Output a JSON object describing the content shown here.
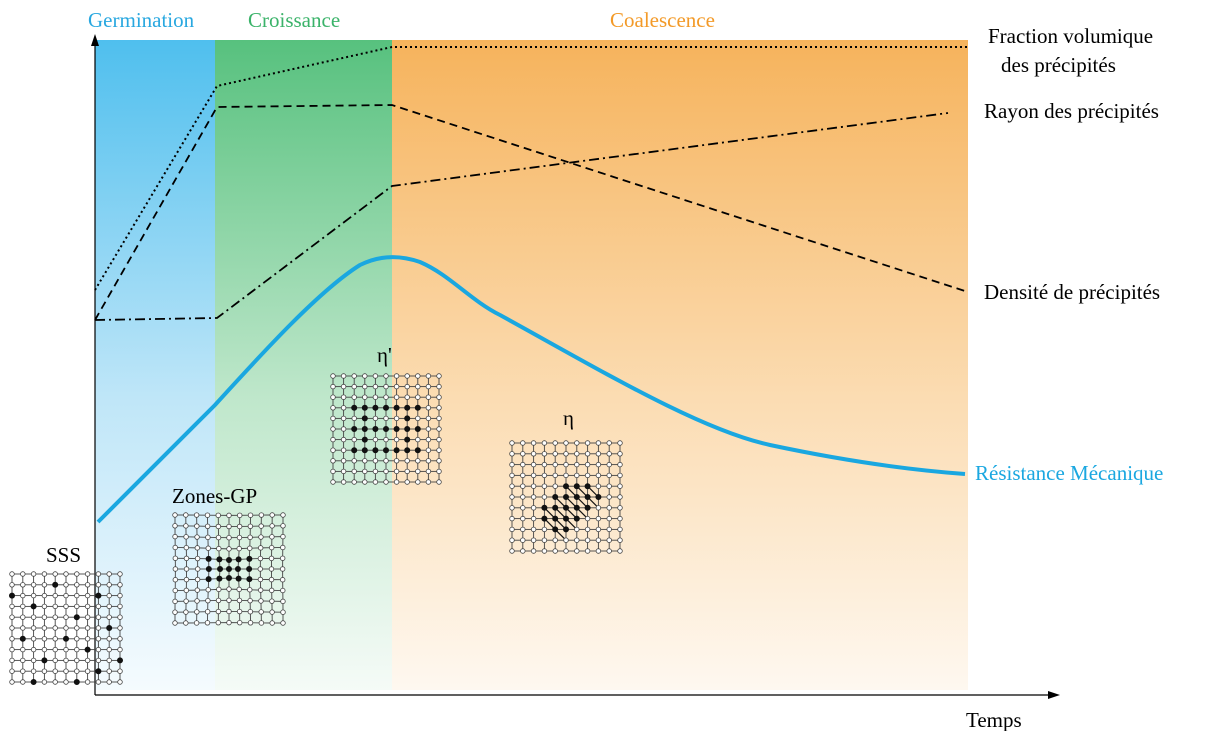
{
  "phases": {
    "germination": {
      "label": "Germination",
      "color": "#29a8e0"
    },
    "croissance": {
      "label": "Croissance",
      "color": "#3bb36a"
    },
    "coalescence": {
      "label": "Coalescence",
      "color": "#f39a28"
    }
  },
  "curves": {
    "fraction_volumique": {
      "label_line1": "Fraction volumique",
      "label_line2": "des précipités"
    },
    "rayon": {
      "label": "Rayon des précipités"
    },
    "densite": {
      "label": "Densité de précipités"
    },
    "resistance": {
      "label": "Résistance Mécanique",
      "color": "#1aa7e0"
    }
  },
  "structures": {
    "sss": {
      "label": "SSS"
    },
    "zones_gp": {
      "label": "Zones-GP"
    },
    "eta_prime": {
      "label": "η'"
    },
    "eta": {
      "label": "η"
    }
  },
  "axis": {
    "x_label": "Temps"
  },
  "colors": {
    "lattice": "#444444",
    "atom_dark": "#111111"
  }
}
